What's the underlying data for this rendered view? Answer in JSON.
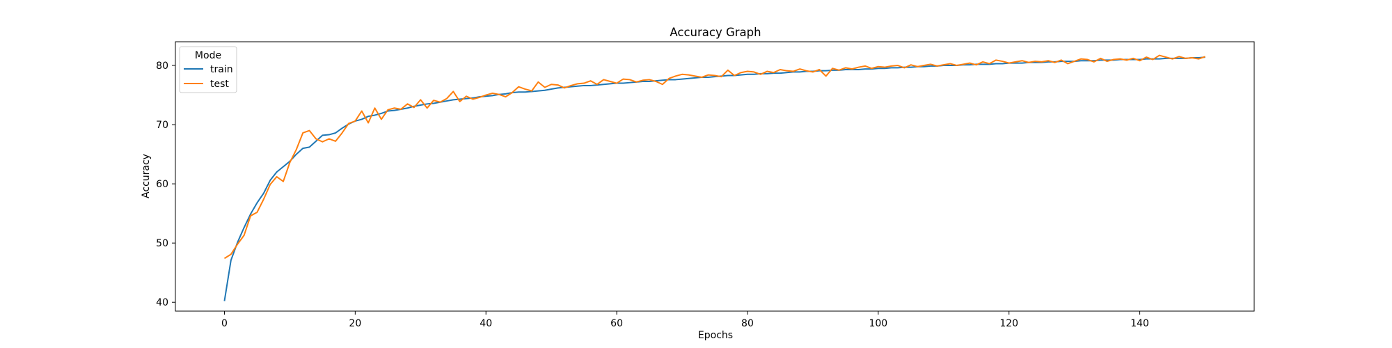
{
  "chart_data": {
    "type": "line",
    "title": "Accuracy Graph",
    "xlabel": "Epochs",
    "ylabel": "Accuracy",
    "xlim": [
      -7.5,
      157.5
    ],
    "ylim": [
      38.5,
      84.0
    ],
    "xticks": [
      0,
      20,
      40,
      60,
      80,
      100,
      120,
      140
    ],
    "yticks": [
      40,
      50,
      60,
      70,
      80
    ],
    "grid": false,
    "legend": {
      "title": "Mode",
      "placement": "top-left"
    },
    "x": [
      0,
      1,
      2,
      3,
      4,
      5,
      6,
      7,
      8,
      9,
      10,
      11,
      12,
      13,
      14,
      15,
      16,
      17,
      18,
      19,
      20,
      21,
      22,
      23,
      24,
      25,
      26,
      27,
      28,
      29,
      30,
      31,
      32,
      33,
      34,
      35,
      36,
      37,
      38,
      39,
      40,
      41,
      42,
      43,
      44,
      45,
      46,
      47,
      48,
      49,
      50,
      51,
      52,
      53,
      54,
      55,
      56,
      57,
      58,
      59,
      60,
      61,
      62,
      63,
      64,
      65,
      66,
      67,
      68,
      69,
      70,
      71,
      72,
      73,
      74,
      75,
      76,
      77,
      78,
      79,
      80,
      81,
      82,
      83,
      84,
      85,
      86,
      87,
      88,
      89,
      90,
      91,
      92,
      93,
      94,
      95,
      96,
      97,
      98,
      99,
      100,
      101,
      102,
      103,
      104,
      105,
      106,
      107,
      108,
      109,
      110,
      111,
      112,
      113,
      114,
      115,
      116,
      117,
      118,
      119,
      120,
      121,
      122,
      123,
      124,
      125,
      126,
      127,
      128,
      129,
      130,
      131,
      132,
      133,
      134,
      135,
      136,
      137,
      138,
      139,
      140,
      141,
      142,
      143,
      144,
      145,
      146,
      147,
      148,
      149,
      150
    ],
    "series": [
      {
        "name": "train",
        "color": "#1f77b4",
        "values": [
          40.2,
          47.1,
          50.1,
          52.6,
          54.9,
          56.8,
          58.4,
          60.6,
          62.0,
          62.9,
          63.8,
          65.0,
          66.0,
          66.2,
          67.2,
          68.2,
          68.3,
          68.6,
          69.4,
          70.1,
          70.6,
          70.9,
          71.4,
          71.6,
          71.9,
          72.3,
          72.4,
          72.6,
          72.8,
          73.1,
          73.3,
          73.5,
          73.6,
          73.8,
          74.0,
          74.2,
          74.3,
          74.4,
          74.5,
          74.7,
          74.8,
          74.9,
          75.1,
          75.2,
          75.4,
          75.5,
          75.5,
          75.6,
          75.7,
          75.8,
          76.0,
          76.2,
          76.3,
          76.4,
          76.5,
          76.6,
          76.6,
          76.7,
          76.8,
          76.9,
          77.0,
          77.0,
          77.1,
          77.2,
          77.3,
          77.3,
          77.4,
          77.5,
          77.6,
          77.6,
          77.7,
          77.8,
          77.9,
          78.0,
          78.0,
          78.1,
          78.2,
          78.3,
          78.3,
          78.4,
          78.5,
          78.5,
          78.6,
          78.6,
          78.7,
          78.7,
          78.8,
          78.9,
          78.9,
          79.0,
          79.0,
          79.1,
          79.1,
          79.2,
          79.2,
          79.3,
          79.3,
          79.3,
          79.4,
          79.4,
          79.5,
          79.5,
          79.6,
          79.6,
          79.7,
          79.7,
          79.8,
          79.8,
          79.9,
          79.9,
          80.0,
          80.0,
          80.0,
          80.1,
          80.1,
          80.2,
          80.2,
          80.2,
          80.3,
          80.3,
          80.4,
          80.4,
          80.4,
          80.5,
          80.5,
          80.5,
          80.6,
          80.6,
          80.7,
          80.7,
          80.7,
          80.8,
          80.8,
          80.8,
          80.9,
          80.9,
          80.9,
          81.0,
          81.0,
          81.0,
          81.0,
          81.1,
          81.1,
          81.1,
          81.2,
          81.2,
          81.2,
          81.2,
          81.3,
          81.3,
          81.4
        ]
      },
      {
        "name": "test",
        "color": "#ff7f0e",
        "values": [
          47.4,
          48.1,
          49.8,
          51.3,
          54.6,
          55.2,
          57.4,
          59.9,
          61.2,
          60.4,
          63.6,
          65.8,
          68.6,
          69.0,
          67.6,
          67.1,
          67.6,
          67.2,
          68.6,
          70.2,
          70.6,
          72.3,
          70.3,
          72.8,
          70.9,
          72.5,
          72.8,
          72.6,
          73.5,
          72.9,
          74.2,
          72.8,
          74.1,
          73.8,
          74.4,
          75.6,
          73.9,
          74.8,
          74.3,
          74.6,
          75.0,
          75.3,
          75.1,
          74.7,
          75.4,
          76.4,
          76.0,
          75.7,
          77.2,
          76.3,
          76.8,
          76.7,
          76.2,
          76.6,
          76.9,
          77.0,
          77.4,
          76.8,
          77.6,
          77.3,
          77.0,
          77.7,
          77.6,
          77.2,
          77.5,
          77.6,
          77.3,
          76.8,
          77.8,
          78.2,
          78.5,
          78.4,
          78.2,
          78.0,
          78.4,
          78.3,
          78.1,
          79.2,
          78.3,
          78.8,
          79.0,
          78.9,
          78.5,
          79.0,
          78.8,
          79.3,
          79.1,
          79.0,
          79.4,
          79.1,
          78.9,
          79.3,
          78.2,
          79.5,
          79.2,
          79.6,
          79.4,
          79.7,
          79.9,
          79.5,
          79.8,
          79.7,
          79.9,
          80.0,
          79.6,
          80.1,
          79.8,
          80.0,
          80.2,
          79.9,
          80.1,
          80.3,
          80.0,
          80.2,
          80.4,
          80.1,
          80.6,
          80.3,
          80.9,
          80.7,
          80.4,
          80.6,
          80.8,
          80.5,
          80.7,
          80.6,
          80.8,
          80.5,
          80.9,
          80.3,
          80.7,
          81.1,
          81.0,
          80.6,
          81.2,
          80.7,
          81.0,
          81.1,
          80.9,
          81.2,
          80.8,
          81.4,
          81.0,
          81.7,
          81.4,
          81.1,
          81.5,
          81.2,
          81.3,
          81.1,
          81.5
        ]
      }
    ]
  }
}
